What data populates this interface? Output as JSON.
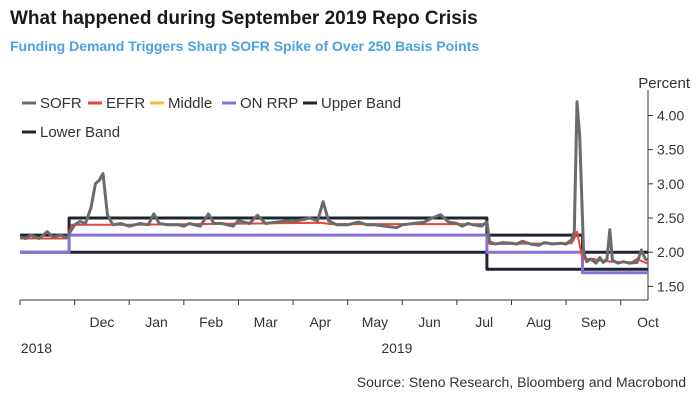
{
  "title": "What happened during September 2019 Repo Crisis",
  "subtitle": "Funding Demand Triggers Sharp SOFR Spike of Over 250 Basis Points",
  "source": "Source: Steno Research, Bloomberg and Macrobond",
  "chart_data": {
    "type": "line",
    "ylabel": "Percent",
    "yaxis_position": "right",
    "ylim": [
      1.3,
      4.3
    ],
    "yticks": [
      1.5,
      2.0,
      2.5,
      3.0,
      3.5,
      4.0
    ],
    "ytick_labels": [
      "1.50",
      "2.00",
      "2.50",
      "3.00",
      "3.50",
      "4.00"
    ],
    "xlim": [
      0,
      11.5
    ],
    "month_labels": [
      "Dec",
      "Jan",
      "Feb",
      "Mar",
      "Apr",
      "May",
      "Jun",
      "Jul",
      "Aug",
      "Sep",
      "Oct"
    ],
    "year_labels": [
      {
        "label": "2018",
        "at": 0.2
      },
      {
        "label": "2019",
        "at": 6.8
      }
    ],
    "legend_placement": "top-left",
    "colors": {
      "SOFR": "#6b6b6b",
      "EFFR": "#e8453c",
      "Middle": "#f2c12e",
      "ON RRP": "#8a70d6",
      "Upper Band": "#1f2433",
      "Lower Band": "#1f2433"
    },
    "series": [
      {
        "name": "SOFR",
        "width": 3,
        "points": [
          [
            0,
            2.22
          ],
          [
            0.1,
            2.2
          ],
          [
            0.2,
            2.25
          ],
          [
            0.35,
            2.2
          ],
          [
            0.5,
            2.3
          ],
          [
            0.6,
            2.22
          ],
          [
            0.75,
            2.25
          ],
          [
            0.85,
            2.21
          ],
          [
            1.0,
            2.4
          ],
          [
            1.1,
            2.45
          ],
          [
            1.2,
            2.42
          ],
          [
            1.3,
            2.65
          ],
          [
            1.38,
            3.0
          ],
          [
            1.45,
            3.05
          ],
          [
            1.52,
            3.15
          ],
          [
            1.6,
            2.55
          ],
          [
            1.7,
            2.4
          ],
          [
            1.85,
            2.42
          ],
          [
            2.0,
            2.38
          ],
          [
            2.2,
            2.42
          ],
          [
            2.35,
            2.4
          ],
          [
            2.45,
            2.56
          ],
          [
            2.55,
            2.42
          ],
          [
            2.7,
            2.4
          ],
          [
            2.9,
            2.4
          ],
          [
            3.0,
            2.38
          ],
          [
            3.1,
            2.42
          ],
          [
            3.3,
            2.38
          ],
          [
            3.45,
            2.56
          ],
          [
            3.55,
            2.42
          ],
          [
            3.7,
            2.42
          ],
          [
            3.9,
            2.38
          ],
          [
            4.0,
            2.46
          ],
          [
            4.2,
            2.42
          ],
          [
            4.35,
            2.54
          ],
          [
            4.5,
            2.42
          ],
          [
            4.7,
            2.44
          ],
          [
            4.9,
            2.46
          ],
          [
            5.0,
            2.45
          ],
          [
            5.2,
            2.48
          ],
          [
            5.3,
            2.5
          ],
          [
            5.45,
            2.46
          ],
          [
            5.55,
            2.74
          ],
          [
            5.65,
            2.46
          ],
          [
            5.8,
            2.4
          ],
          [
            6.0,
            2.4
          ],
          [
            6.2,
            2.44
          ],
          [
            6.35,
            2.4
          ],
          [
            6.5,
            2.4
          ],
          [
            6.7,
            2.38
          ],
          [
            6.9,
            2.36
          ],
          [
            7.0,
            2.4
          ],
          [
            7.2,
            2.42
          ],
          [
            7.4,
            2.44
          ],
          [
            7.55,
            2.5
          ],
          [
            7.7,
            2.55
          ],
          [
            7.85,
            2.44
          ],
          [
            8.0,
            2.42
          ],
          [
            8.1,
            2.38
          ],
          [
            8.2,
            2.42
          ],
          [
            8.3,
            2.4
          ],
          [
            8.45,
            2.38
          ],
          [
            8.55,
            2.44
          ],
          [
            8.6,
            2.15
          ],
          [
            8.7,
            2.12
          ],
          [
            8.85,
            2.14
          ],
          [
            9.0,
            2.13
          ],
          [
            9.1,
            2.12
          ],
          [
            9.2,
            2.16
          ],
          [
            9.35,
            2.12
          ],
          [
            9.5,
            2.1
          ],
          [
            9.6,
            2.14
          ],
          [
            9.75,
            2.12
          ],
          [
            9.9,
            2.13
          ],
          [
            10.0,
            2.12
          ],
          [
            10.1,
            2.18
          ],
          [
            10.15,
            2.3
          ],
          [
            10.2,
            4.2
          ],
          [
            10.25,
            3.7
          ],
          [
            10.32,
            2.0
          ],
          [
            10.38,
            1.86
          ],
          [
            10.45,
            1.9
          ],
          [
            10.55,
            1.84
          ],
          [
            10.62,
            1.92
          ],
          [
            10.68,
            1.85
          ],
          [
            10.75,
            1.9
          ],
          [
            10.8,
            2.33
          ],
          [
            10.85,
            1.88
          ],
          [
            10.95,
            1.84
          ],
          [
            11.05,
            1.86
          ],
          [
            11.15,
            1.84
          ],
          [
            11.3,
            1.85
          ],
          [
            11.38,
            2.03
          ],
          [
            11.45,
            1.9
          ],
          [
            11.55,
            1.86
          ],
          [
            11.7,
            1.84
          ],
          [
            11.85,
            1.83
          ],
          [
            12.0,
            1.8
          ]
        ]
      },
      {
        "name": "EFFR",
        "width": 2,
        "points": [
          [
            0,
            2.2
          ],
          [
            0.85,
            2.2
          ],
          [
            0.95,
            2.4
          ],
          [
            1.7,
            2.4
          ],
          [
            2.0,
            2.4
          ],
          [
            5.5,
            2.43
          ],
          [
            5.7,
            2.41
          ],
          [
            8.55,
            2.41
          ],
          [
            8.6,
            2.12
          ],
          [
            10.1,
            2.13
          ],
          [
            10.15,
            2.2
          ],
          [
            10.2,
            2.3
          ],
          [
            10.3,
            1.9
          ],
          [
            10.5,
            1.9
          ],
          [
            10.6,
            1.88
          ],
          [
            10.85,
            1.86
          ],
          [
            11.2,
            1.85
          ],
          [
            11.3,
            1.9
          ],
          [
            11.5,
            1.83
          ],
          [
            12.0,
            1.83
          ]
        ]
      },
      {
        "name": "Middle",
        "width": 2,
        "points": [
          [
            0,
            2.0
          ],
          [
            12.0,
            2.0
          ]
        ],
        "hidden": true
      },
      {
        "name": "ON RRP",
        "width": 3,
        "points": [
          [
            0,
            2.0
          ],
          [
            0.9,
            2.0
          ],
          [
            0.9,
            2.25
          ],
          [
            8.55,
            2.25
          ],
          [
            8.55,
            2.0
          ],
          [
            10.3,
            2.0
          ],
          [
            10.3,
            1.7
          ],
          [
            12.0,
            1.7
          ]
        ]
      },
      {
        "name": "Upper Band",
        "width": 3,
        "points": [
          [
            0,
            2.25
          ],
          [
            0.9,
            2.25
          ],
          [
            0.9,
            2.5
          ],
          [
            8.55,
            2.5
          ],
          [
            8.55,
            2.25
          ],
          [
            10.3,
            2.25
          ],
          [
            10.3,
            2.0
          ],
          [
            12.0,
            2.0
          ]
        ]
      },
      {
        "name": "Lower Band",
        "width": 3,
        "points": [
          [
            0,
            2.0
          ],
          [
            8.55,
            2.0
          ],
          [
            8.55,
            1.75
          ],
          [
            10.3,
            1.75
          ],
          [
            10.3,
            1.75
          ],
          [
            12.0,
            1.75
          ]
        ]
      }
    ]
  }
}
